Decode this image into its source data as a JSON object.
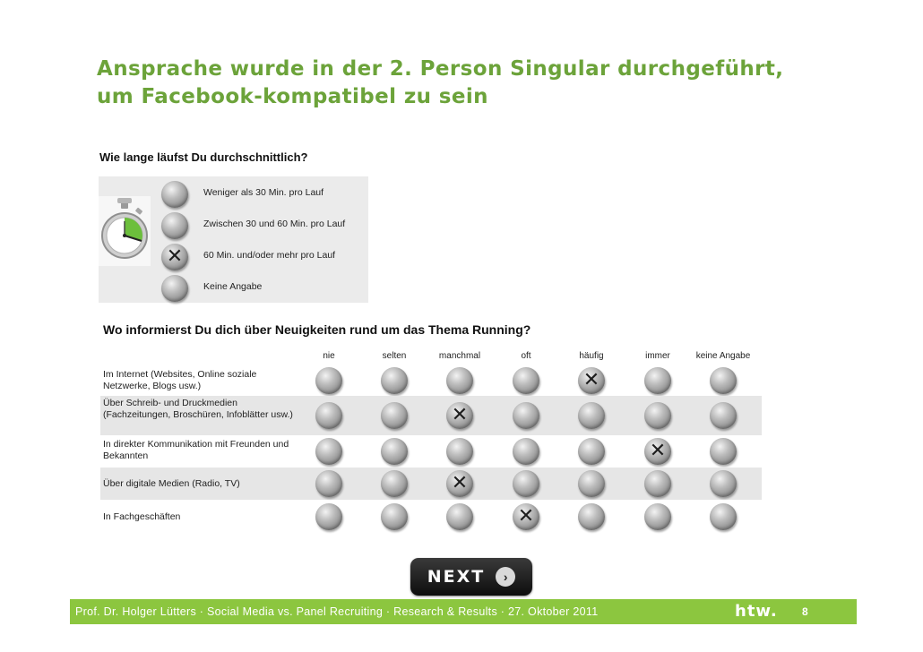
{
  "slide": {
    "title_line1": "Ansprache wurde in der 2. Person Singular durchgeführt,",
    "title_line2": "um Facebook-kompatibel zu sein",
    "accent_color": "#6ca33a"
  },
  "question1": {
    "title": "Wie lange läufst Du durchschnittlich?",
    "options": [
      {
        "label": "Weniger als 30 Min. pro Lauf",
        "selected": false
      },
      {
        "label": "Zwischen 30 und 60 Min. pro Lauf",
        "selected": false
      },
      {
        "label": "60 Min. und/oder mehr pro Lauf",
        "selected": true
      },
      {
        "label": "Keine Angabe",
        "selected": false
      }
    ]
  },
  "question2": {
    "title": "Wo informierst Du dich über Neuigkeiten rund um das Thema Running?",
    "columns": [
      "nie",
      "selten",
      "manchmal",
      "oft",
      "häufig",
      "immer",
      "keine Angabe"
    ],
    "rows": [
      {
        "label": "Im Internet (Websites, Online soziale Netzwerke, Blogs usw.)",
        "selected_column": 4
      },
      {
        "label": "Über Schreib- und Druckmedien (Fachzeitungen, Broschüren, Infoblätter usw.)",
        "selected_column": 2
      },
      {
        "label": "In direkter Kommunikation mit Freunden und Bekannten",
        "selected_column": 5
      },
      {
        "label": "Über digitale Medien (Radio, TV)",
        "selected_column": 2
      },
      {
        "label": "In Fachgeschäften",
        "selected_column": 3
      }
    ]
  },
  "next_button": {
    "label": "NEXT",
    "icon": "arrow-right-icon"
  },
  "footer": {
    "text": "Prof. Dr. Holger Lütters · Social Media vs. Panel Recruiting · Research & Results · 27. Oktober 2011",
    "logo": "htw.",
    "page_number": "8",
    "color": "#8cc63f"
  }
}
